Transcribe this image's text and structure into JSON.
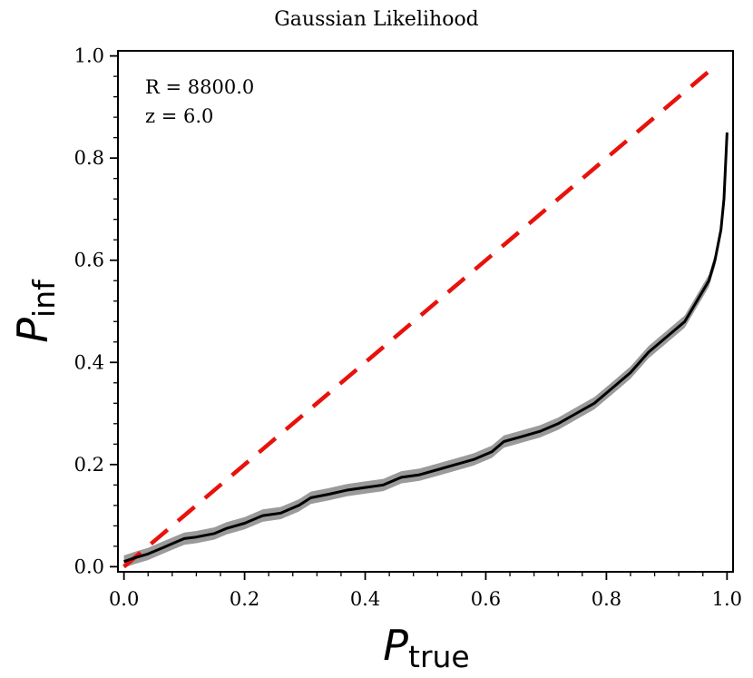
{
  "chart_data": {
    "type": "line",
    "title": "Gaussian Likelihood",
    "xlabel": {
      "main": "P",
      "sub": "true"
    },
    "ylabel": {
      "main": "P",
      "sub": "inf"
    },
    "xlim": [
      -0.01,
      1.01
    ],
    "ylim": [
      -0.01,
      1.01
    ],
    "xticks": [
      0.0,
      0.2,
      0.4,
      0.6,
      0.8,
      1.0
    ],
    "yticks": [
      0.0,
      0.2,
      0.4,
      0.6,
      0.8,
      1.0
    ],
    "xtick_labels": [
      "0.0",
      "0.2",
      "0.4",
      "0.6",
      "0.8",
      "1.0"
    ],
    "ytick_labels": [
      "0.0",
      "0.2",
      "0.4",
      "0.6",
      "0.8",
      "1.0"
    ],
    "minor_tick_step": 0.04,
    "annotations": [
      "R = 8800.0",
      "z = 6.0"
    ],
    "band_halfwidth": 0.012,
    "series": [
      {
        "name": "reference diagonal",
        "style": "dashed",
        "color": "#e8120c",
        "x": [
          0.0,
          0.98
        ],
        "y": [
          0.0,
          0.98
        ]
      },
      {
        "name": "P_inf vs P_true",
        "style": "solid",
        "color": "#000000",
        "band_color": "#9a9a9a",
        "x": [
          0.0,
          0.02,
          0.04,
          0.06,
          0.08,
          0.1,
          0.12,
          0.15,
          0.17,
          0.2,
          0.23,
          0.26,
          0.29,
          0.31,
          0.34,
          0.37,
          0.4,
          0.43,
          0.46,
          0.49,
          0.52,
          0.55,
          0.58,
          0.61,
          0.63,
          0.66,
          0.69,
          0.72,
          0.75,
          0.78,
          0.81,
          0.84,
          0.87,
          0.9,
          0.93,
          0.95,
          0.97,
          0.98,
          0.99,
          0.995,
          1.0
        ],
        "y": [
          0.01,
          0.018,
          0.025,
          0.035,
          0.045,
          0.055,
          0.058,
          0.065,
          0.075,
          0.085,
          0.1,
          0.105,
          0.12,
          0.135,
          0.142,
          0.15,
          0.155,
          0.16,
          0.175,
          0.18,
          0.19,
          0.2,
          0.21,
          0.225,
          0.245,
          0.255,
          0.265,
          0.28,
          0.3,
          0.32,
          0.35,
          0.38,
          0.42,
          0.45,
          0.48,
          0.52,
          0.56,
          0.6,
          0.66,
          0.72,
          0.85
        ]
      }
    ]
  }
}
